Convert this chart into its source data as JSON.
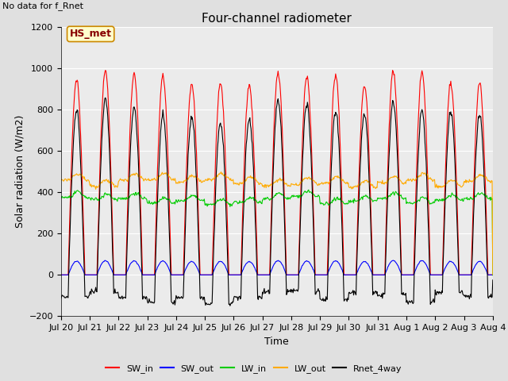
{
  "title": "Four-channel radiometer",
  "top_left_text": "No data for f_Rnet",
  "ylabel": "Solar radiation (W/m2)",
  "xlabel": "Time",
  "station_label": "HS_met",
  "ylim": [
    -200,
    1200
  ],
  "yticks": [
    -200,
    0,
    200,
    400,
    600,
    800,
    1000,
    1200
  ],
  "n_days": 15,
  "x_tick_labels": [
    "Jul 20",
    "Jul 21",
    "Jul 22",
    "Jul 23",
    "Jul 24",
    "Jul 25",
    "Jul 26",
    "Jul 27",
    "Jul 28",
    "Jul 29",
    "Jul 30",
    "Jul 31",
    "Aug 1",
    "Aug 2",
    "Aug 3",
    "Aug 4"
  ],
  "background_color": "#e0e0e0",
  "plot_bg_color": "#ebebeb",
  "grid_color": "#ffffff",
  "lines": [
    {
      "label": "SW_in",
      "color": "#ff0000",
      "lw": 0.8
    },
    {
      "label": "SW_out",
      "color": "#0000ff",
      "lw": 0.8
    },
    {
      "label": "LW_in",
      "color": "#00cc00",
      "lw": 0.8
    },
    {
      "label": "LW_out",
      "color": "#ffaa00",
      "lw": 0.8
    },
    {
      "label": "Rnet_4way",
      "color": "#000000",
      "lw": 0.8
    }
  ],
  "title_fontsize": 11,
  "label_fontsize": 9,
  "tick_fontsize": 8,
  "station_box_color": "#ffffcc",
  "station_box_edge": "#cc8800"
}
